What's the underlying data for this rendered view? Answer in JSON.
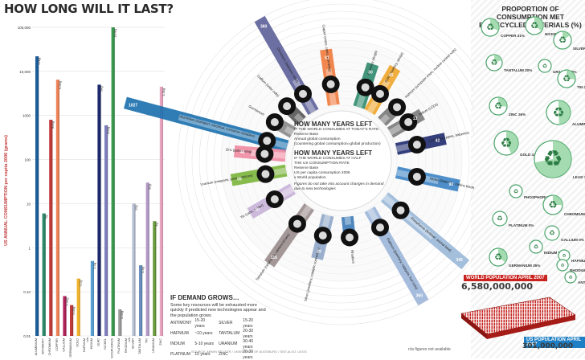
{
  "title": "HOW LONG WILL IT LAST?",
  "recycle_title_line1": "PROPORTION OF CONSUMPTION MET",
  "recycle_title_line2": "BY RECYCLED MATERIALS (%)",
  "center": {
    "q1": "HOW MANY YEARS LEFT",
    "q1_sub": "IF THE WORLD CONSUMES AT TODAY'S RATE",
    "q1_a": "Reserve Base",
    "q1_b": "Annual global consumption",
    "q1_c": "(countering global consumption=global production)",
    "q2": "HOW MANY YEARS LEFT",
    "q2_sub": "IF THE WORLD CONSUMES AT HALF",
    "q2_sub2": "THE US CONSUMPTION RATE",
    "q2_a": "Reserve Base",
    "q2_b": "US per capita consumption 2006",
    "q2_c": "x World population",
    "note": "Figures do not take into account changes in demand due to new technologies"
  },
  "demand": {
    "heading": "IF DEMAND GROWS…",
    "text": "Some key resources will be exhausted more quickly if predicted new technologies appear and the population grows",
    "rows": [
      [
        "ANTIMONY",
        "15-20 years",
        "SILVER",
        "15-20 years"
      ],
      [
        "HAFNIUM",
        "~10 years",
        "TANTALUM",
        "20-30 years"
      ],
      [
        "INDIUM",
        "5-10 years",
        "URANIUM",
        "30-40 years"
      ],
      [
        "PLATINUM",
        "15 years",
        "ZINC",
        "20-30 years"
      ]
    ]
  },
  "world_population_label": "WORLD POPULATION APRIL 2007",
  "world_population": "6,580,000,000",
  "us_population_label": "US POPULATION APRIL 2007",
  "us_population": "301,000,000",
  "footnote": "n/a figures not available",
  "source": "SOURCE: ARMIN REUTER / UNIVERSITY OF AUGSBURG / SEE ALSO: USGS",
  "chart_data": [
    {
      "type": "bar",
      "title": "",
      "ylabel": "US ANNUAL CONSUMPTION per capita 2006 (grams)",
      "yscale": "log",
      "ylim": [
        0.01,
        100000
      ],
      "yticks": [
        "100,000",
        "10,000",
        "1000",
        "100",
        "10",
        "1",
        "0.10",
        "0.01"
      ],
      "categories": [
        "ALUMINIUM",
        "ANTIMONY",
        "CHROMIUM",
        "COPPER",
        "GALLIUM",
        "GERMANIUM",
        "GOLD",
        "HAFNIUM",
        "INDIUM",
        "LEAD",
        "NICKEL",
        "PHOSPHORUS",
        "PLATINUM",
        "RHODIUM",
        "SILVER",
        "TANTALUM",
        "TIN",
        "URANIUM",
        "ZINC"
      ],
      "values": [
        22000,
        6,
        800,
        6500,
        0.08,
        0.05,
        0.2,
        0.01,
        0.5,
        5000,
        600,
        100000,
        0.04,
        0.01,
        10,
        0.4,
        30,
        4,
        4500
      ],
      "value_labels": [
        "22kg",
        "6g",
        "800g",
        "6.5kg",
        "0.08g",
        "0.05g",
        "0.2g",
        "n/a",
        "0.5g",
        "5kg",
        "600g",
        "100kg",
        "0.04g",
        "n/a",
        "10g",
        "0.4g",
        "30g",
        "4g",
        "4.5kg"
      ],
      "colors": [
        "#1c5d9c",
        "#2d8a6b",
        "#c23b3b",
        "#f0845a",
        "#b1245a",
        "#c23b3b",
        "#f2b42c",
        "#999999",
        "#5aa3d6",
        "#1e2a6e",
        "#7f7fbf",
        "#3b9a50",
        "#9c9c9c",
        "#e46ba0",
        "#b8c0d6",
        "#6a8fbf",
        "#b49ac6",
        "#6b9c3f",
        "#e9a5c0"
      ]
    },
    {
      "type": "bar",
      "title": "HOW MANY YEARS LEFT",
      "layout": "radial",
      "categories": [
        "ALUMINIUM",
        "ANTIMONY",
        "CHROMIUM",
        "COPPER",
        "GALLIUM",
        "GERMANIUM",
        "GOLD",
        "HAFNIUM",
        "INDIUM",
        "LEAD",
        "NICKEL",
        "PHOSPHORUS",
        "PLATINUM",
        "RHODIUM",
        "SILVER",
        "TANTALUM",
        "TIN",
        "URANIUM",
        "ZINC"
      ],
      "series": [
        {
          "name": "Years left at today's rate",
          "values": [
            1027,
            30,
            360,
            61,
            0,
            0,
            45,
            0,
            13,
            42,
            90,
            345,
            360,
            0,
            29,
            116,
            40,
            59,
            46
          ]
        },
        {
          "name": "Years left at half US rate",
          "values": [
            510,
            13,
            40,
            38,
            0,
            0,
            36,
            0,
            4,
            8,
            57,
            142,
            15,
            0,
            9,
            20,
            17,
            19,
            34
          ]
        }
      ],
      "captions": {
        "ALUMINIUM": "Aluminium (transport, electrical, consumer durables)",
        "ANTIMONY": "Antimony (drugs)",
        "CHROMIUM": "Chromium (stainless steel)",
        "COPPER": "Copper (wires, coins, plumbing)",
        "GOLD": "Gold (jewellery, dental)",
        "INDIUM": "Indium (LCDs)",
        "LEAD": "Lead (lead pipes, batteries)",
        "NICKEL": "Nickel (batteries, turbine blades)",
        "PHOSPHORUS": "Phosphorus (fertiliser, animal feed)",
        "PLATINUM": "Platinum (jewellery, catalysts, fuel cells)",
        "SILVER": "Silver (jewellery, catalytic converters)",
        "TANTALUM": "Tantalum (cellphones, camera lenses)",
        "TIN": "Tin (cans, solder)",
        "URANIUM": "Uranium (weapons, power stations)",
        "ZINC": "Zinc (galvanising)",
        "GALLIUM": "Gallium (solar cells)",
        "GERMANIUM": "Germanium",
        "HAFNIUM": "Hafnium (computer chips, nuclear control rods)",
        "RHODIUM": "Rhodium"
      }
    },
    {
      "type": "pie",
      "title": "PROPORTION OF CONSUMPTION MET BY RECYCLED MATERIALS (%)",
      "categories": [
        "COPPER",
        "NICKEL",
        "SILVER",
        "TANTALUM",
        "URANIUM",
        "TIN",
        "ZINC",
        "ALUMINIUM",
        "GOLD",
        "LEAD",
        "PHOSPHORUS",
        "CHROMIUM",
        "PLATINUM",
        "GALLIUM",
        "INDIUM",
        "GERMANIUM",
        "HAFNIUM",
        "RHODIUM",
        "ANTIMONY"
      ],
      "values": [
        31,
        35,
        16,
        20,
        0,
        26,
        26,
        49,
        43,
        72,
        0,
        25,
        0,
        0,
        0,
        35,
        null,
        null,
        null
      ],
      "value_labels": [
        "31%",
        "35%",
        "16%",
        "20%",
        "0%",
        "26%",
        "26%",
        "49%",
        "43%",
        "72%",
        "0%",
        "25%",
        "0%",
        "0%",
        "0%",
        "35%",
        "N/A",
        "N/A",
        "N/A"
      ]
    }
  ]
}
